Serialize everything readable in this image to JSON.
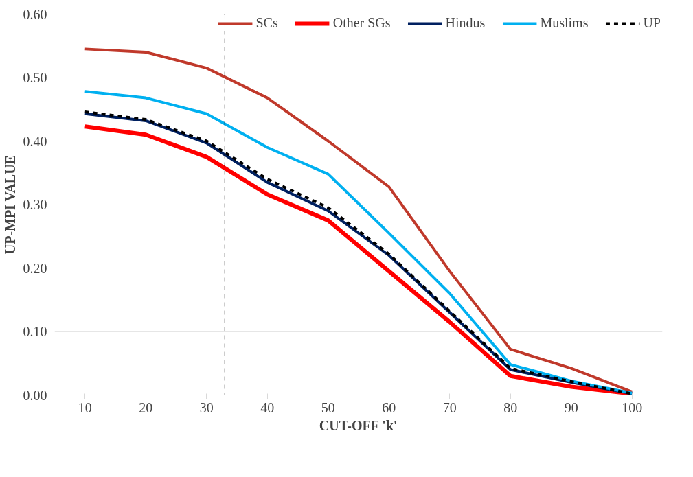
{
  "chart_data": {
    "type": "line",
    "xlabel": "CUT-OFF 'k'",
    "ylabel": "UP-MPI VALUE",
    "x": [
      10,
      20,
      30,
      40,
      50,
      60,
      70,
      80,
      90,
      100
    ],
    "xlim": [
      5,
      105
    ],
    "xticks": [
      10,
      20,
      30,
      40,
      50,
      60,
      70,
      80,
      90,
      100
    ],
    "ylim": [
      0,
      0.6
    ],
    "yticks": [
      {
        "value": 0,
        "label": "0.00"
      },
      {
        "value": 0.1,
        "label": "0.10"
      },
      {
        "value": 0.2,
        "label": "0.20"
      },
      {
        "value": 0.3,
        "label": "0.30"
      },
      {
        "value": 0.4,
        "label": "0.40"
      },
      {
        "value": 0.5,
        "label": "0.50"
      },
      {
        "value": 0.6,
        "label": "0.60"
      }
    ],
    "grid": "y",
    "legend": "top",
    "series": [
      {
        "name": "SCs",
        "color": "#c0392b",
        "values": [
          0.545,
          0.54,
          0.515,
          0.468,
          0.4,
          0.328,
          0.195,
          0.072,
          0.042,
          0.005
        ]
      },
      {
        "name": "Other SGs",
        "color": "#ff0000",
        "values": [
          0.423,
          0.41,
          0.375,
          0.316,
          0.275,
          0.195,
          0.115,
          0.03,
          0.013,
          0.002
        ]
      },
      {
        "name": "Hindus",
        "color": "#002060",
        "values": [
          0.443,
          0.432,
          0.397,
          0.335,
          0.29,
          0.22,
          0.13,
          0.04,
          0.02,
          0.002
        ]
      },
      {
        "name": "Muslims",
        "color": "#00b0f0",
        "values": [
          0.478,
          0.468,
          0.443,
          0.39,
          0.348,
          0.255,
          0.16,
          0.048,
          0.022,
          0.003
        ]
      },
      {
        "name": "UP",
        "color": "#000000",
        "line_style": "dashed",
        "values": [
          0.446,
          0.434,
          0.4,
          0.34,
          0.295,
          0.222,
          0.132,
          0.042,
          0.021,
          0.002
        ]
      }
    ],
    "ref_lines": [
      {
        "axis": "x",
        "value": 33,
        "color": "#000000",
        "line_style": "dashed"
      }
    ]
  }
}
